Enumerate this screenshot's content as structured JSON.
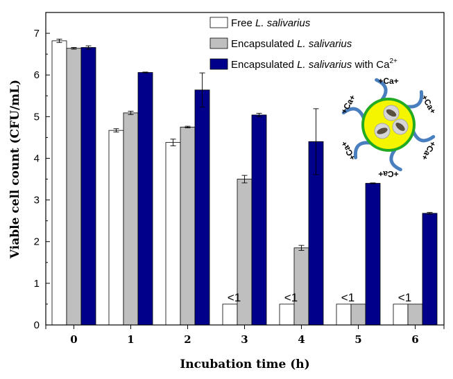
{
  "chart_data": {
    "type": "bar",
    "categories": [
      "0",
      "1",
      "2",
      "3",
      "4",
      "5",
      "6"
    ],
    "xlabel": "Incubation time (h)",
    "ylabel": "Viable cell count (CFU/mL)",
    "ylim": [
      0,
      7.5
    ],
    "yticks": [
      "0",
      "1",
      "2",
      "3",
      "4",
      "5",
      "6",
      "7"
    ],
    "series": [
      {
        "name_parts": [
          "Free ",
          "L. salivarius",
          "",
          ""
        ],
        "color": "#ffffff",
        "values": [
          6.82,
          4.67,
          4.38,
          0.5,
          0.5,
          0.5,
          0.5
        ],
        "errors": [
          0.04,
          0.04,
          0.08,
          0,
          0,
          0,
          0
        ]
      },
      {
        "name_parts": [
          "Encapsulated ",
          "L. salivarius",
          "",
          ""
        ],
        "color": "#bfbfbf",
        "values": [
          6.64,
          5.09,
          4.75,
          3.5,
          1.85,
          0.5,
          0.5
        ],
        "errors": [
          0.02,
          0.04,
          0.02,
          0.09,
          0.06,
          0,
          0
        ]
      },
      {
        "name_parts": [
          "Encapsulated ",
          "L. salivarius",
          " with Ca",
          "2+"
        ],
        "color": "#00008b",
        "values": [
          6.66,
          6.06,
          5.64,
          5.04,
          4.4,
          3.4,
          2.68
        ],
        "errors": [
          0.04,
          0.01,
          0.41,
          0.04,
          0.79,
          0.01,
          0.02
        ]
      }
    ],
    "annotations": [
      {
        "category": "3",
        "text": "<1"
      },
      {
        "category": "4",
        "text": "<1"
      },
      {
        "category": "5",
        "text": "<1"
      },
      {
        "category": "6",
        "text": "<1"
      }
    ],
    "legend_position": "top-right",
    "inset": {
      "ion_label": "+Ca+",
      "ion_count": 6,
      "core_color": "#f5f500",
      "ring_color": "#22aa22",
      "strand_color": "#4a7fbf"
    }
  }
}
